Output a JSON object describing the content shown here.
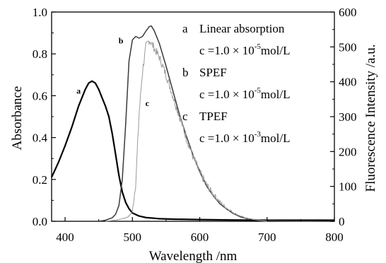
{
  "chart_data": {
    "type": "line",
    "xlabel": "Wavelength /nm",
    "ylabel": "Absorbance",
    "y2label": "Fluorescence Intensity /a.u.",
    "xlim": [
      380,
      800
    ],
    "ylim": [
      0,
      1.0
    ],
    "y2lim": [
      0,
      600
    ],
    "x_ticks": [
      400,
      500,
      600,
      700,
      800
    ],
    "y_ticks": [
      0.0,
      0.2,
      0.4,
      0.6,
      0.8,
      1.0
    ],
    "y2_ticks": [
      0,
      100,
      200,
      300,
      400,
      500,
      600
    ],
    "x_tick_labels": [
      "400",
      "500",
      "600",
      "700",
      "800"
    ],
    "y_tick_labels": [
      "0.0",
      "0.2",
      "0.4",
      "0.6",
      "0.8",
      "1.0"
    ],
    "y2_tick_labels": [
      "0",
      "100",
      "200",
      "300",
      "400",
      "500",
      "600"
    ],
    "grid": false,
    "legend": {
      "position": "top-right",
      "entries": [
        {
          "key": "a",
          "name": "Linear absorption",
          "conc": "c =1.0 ×  10",
          "exp": "-5",
          "unit": "mol/L"
        },
        {
          "key": "b",
          "name": "SPEF",
          "conc": "c =1.0 ×  10",
          "exp": "-5",
          "unit": "mol/L"
        },
        {
          "key": "c",
          "name": "TPEF",
          "conc": "c =1.0 ×  10",
          "exp": "-3",
          "unit": "mol/L"
        }
      ]
    },
    "series": [
      {
        "key": "a",
        "axis": "left",
        "color": "#000000",
        "width": 2.2,
        "noise": 0,
        "x": [
          380,
          390,
          400,
          410,
          420,
          430,
          435,
          440,
          445,
          450,
          455,
          460,
          465,
          470,
          475,
          480,
          485,
          490,
          495,
          500,
          510,
          520,
          540,
          560,
          600,
          650,
          700,
          750,
          800
        ],
        "y": [
          0.21,
          0.28,
          0.36,
          0.45,
          0.55,
          0.63,
          0.66,
          0.67,
          0.66,
          0.63,
          0.59,
          0.55,
          0.5,
          0.42,
          0.32,
          0.22,
          0.14,
          0.09,
          0.06,
          0.04,
          0.025,
          0.018,
          0.012,
          0.01,
          0.008,
          0.006,
          0.005,
          0.005,
          0.005
        ]
      },
      {
        "key": "b",
        "axis": "right",
        "color": "#3a3a3a",
        "width": 1.5,
        "noise": 0,
        "x": [
          450,
          460,
          470,
          475,
          480,
          485,
          490,
          495,
          500,
          505,
          510,
          515,
          520,
          525,
          528,
          532,
          540,
          550,
          560,
          570,
          580,
          590,
          600,
          610,
          620,
          630,
          640,
          650,
          660,
          670,
          680,
          690,
          700,
          720,
          800
        ],
        "y": [
          0,
          3,
          10,
          20,
          45,
          120,
          280,
          460,
          520,
          530,
          525,
          530,
          545,
          558,
          560,
          548,
          510,
          445,
          375,
          305,
          245,
          190,
          142,
          102,
          73,
          50,
          35,
          22,
          13,
          8,
          5,
          3,
          2,
          1,
          0
        ]
      },
      {
        "key": "c",
        "axis": "right",
        "color": "#9a9a9a",
        "width": 1.0,
        "noise": 12,
        "x": [
          460,
          470,
          480,
          490,
          495,
          500,
          505,
          510,
          515,
          520,
          525,
          530,
          540,
          550,
          560,
          570,
          580,
          590,
          600,
          610,
          620,
          630,
          640,
          650,
          660,
          670,
          680,
          690,
          700
        ],
        "y": [
          0,
          2,
          5,
          10,
          15,
          28,
          110,
          310,
          430,
          500,
          520,
          505,
          470,
          420,
          360,
          300,
          240,
          185,
          140,
          105,
          78,
          55,
          38,
          25,
          15,
          9,
          5,
          2,
          0
        ]
      }
    ],
    "curve_labels": [
      {
        "text": "a",
        "x": 420,
        "y": 0.61
      },
      {
        "text": "b",
        "x": 483,
        "y": 0.85
      },
      {
        "text": "c",
        "x": 522,
        "y": 0.55
      }
    ]
  }
}
